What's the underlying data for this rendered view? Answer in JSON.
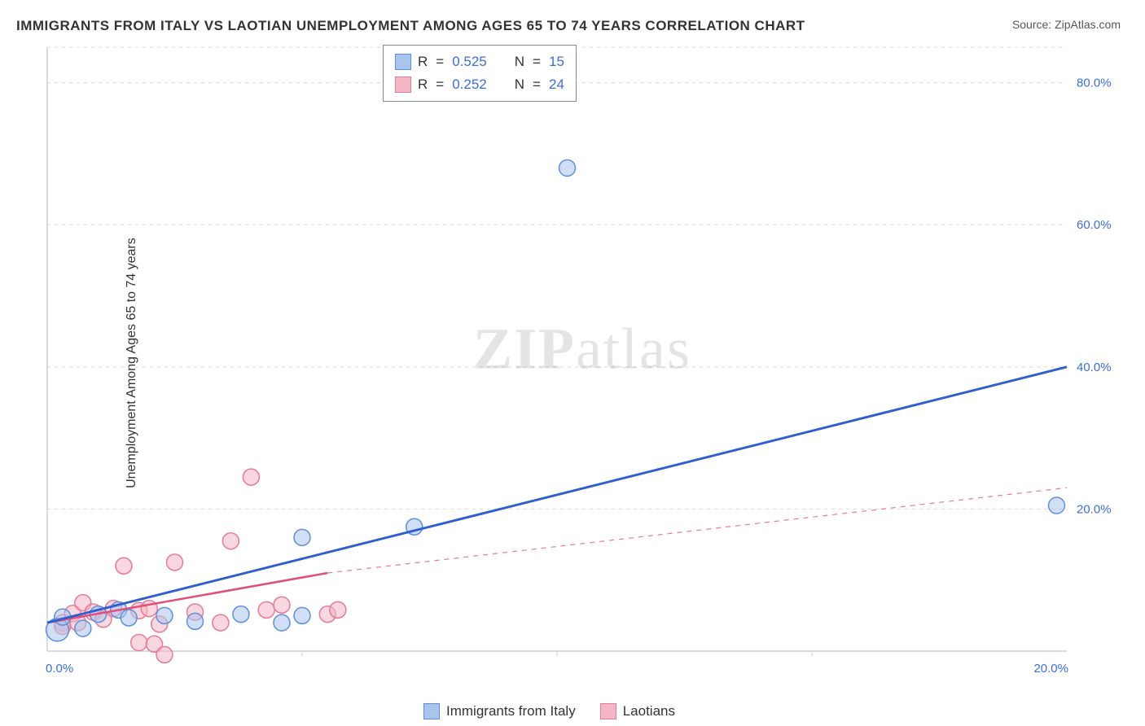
{
  "title": "IMMIGRANTS FROM ITALY VS LAOTIAN UNEMPLOYMENT AMONG AGES 65 TO 74 YEARS CORRELATION CHART",
  "source": "Source: ZipAtlas.com",
  "ylabel": "Unemployment Among Ages 65 to 74 years",
  "watermark_bold": "ZIP",
  "watermark_rest": "atlas",
  "chart": {
    "type": "scatter-correlation",
    "background_color": "#ffffff",
    "grid_color": "#d9d9d9",
    "axis_color": "#cfcfcf",
    "tick_label_color": "#3b6fd6",
    "xlim": [
      0,
      20
    ],
    "ylim": [
      0,
      85
    ],
    "x_ticks": [
      0.0,
      20.0
    ],
    "x_tick_labels": [
      "0.0%",
      "20.0%"
    ],
    "y_ticks": [
      20.0,
      40.0,
      60.0,
      80.0
    ],
    "y_tick_labels": [
      "20.0%",
      "40.0%",
      "60.0%",
      "80.0%"
    ],
    "grid_y": [
      20.0,
      40.0,
      60.0,
      80.0,
      85.0
    ],
    "grid_x_minor": [
      5.0,
      10.0,
      15.0
    ],
    "series": [
      {
        "key": "italy",
        "label": "Immigrants from Italy",
        "r": 0.525,
        "n": 15,
        "fill_color": "#a9c5ec",
        "stroke_color": "#5f8fd9",
        "fill_opacity": 0.55,
        "marker_radius": 10,
        "trend_color": "#2f5fcf",
        "trend_width": 3,
        "trend_dash": "none",
        "trend_line": {
          "x1": 0.0,
          "y1": 4.0,
          "x2": 20.0,
          "y2": 40.0
        },
        "points": [
          {
            "x": 0.2,
            "y": 3.0,
            "r": 14
          },
          {
            "x": 0.3,
            "y": 4.8,
            "r": 10
          },
          {
            "x": 0.7,
            "y": 3.2,
            "r": 10
          },
          {
            "x": 1.0,
            "y": 5.2,
            "r": 10
          },
          {
            "x": 1.4,
            "y": 5.8,
            "r": 10
          },
          {
            "x": 1.6,
            "y": 4.7,
            "r": 10
          },
          {
            "x": 2.3,
            "y": 5.0,
            "r": 10
          },
          {
            "x": 2.9,
            "y": 4.2,
            "r": 10
          },
          {
            "x": 3.8,
            "y": 5.2,
            "r": 10
          },
          {
            "x": 4.6,
            "y": 4.0,
            "r": 10
          },
          {
            "x": 5.0,
            "y": 5.0,
            "r": 10
          },
          {
            "x": 5.0,
            "y": 16.0,
            "r": 10
          },
          {
            "x": 7.2,
            "y": 17.5,
            "r": 10
          },
          {
            "x": 10.2,
            "y": 68.0,
            "r": 10
          },
          {
            "x": 19.8,
            "y": 20.5,
            "r": 10
          }
        ]
      },
      {
        "key": "laotians",
        "label": "Laotians",
        "r": 0.252,
        "n": 24,
        "fill_color": "#f3b7c6",
        "stroke_color": "#e77a97",
        "fill_opacity": 0.55,
        "marker_radius": 10,
        "trend_solid": {
          "color": "#e04f78",
          "width": 2.5,
          "x1": 0.0,
          "y1": 4.0,
          "x2": 5.5,
          "y2": 11.0
        },
        "trend_dash_line": {
          "color": "#e77a97",
          "width": 1.2,
          "dash": "6,6",
          "x1": 5.5,
          "y1": 11.0,
          "x2": 20.0,
          "y2": 23.0
        },
        "points": [
          {
            "x": 0.3,
            "y": 4.0,
            "r": 10
          },
          {
            "x": 0.3,
            "y": 3.5,
            "r": 10
          },
          {
            "x": 0.5,
            "y": 5.3,
            "r": 10
          },
          {
            "x": 0.6,
            "y": 4.0,
            "r": 10
          },
          {
            "x": 0.7,
            "y": 6.8,
            "r": 10
          },
          {
            "x": 0.9,
            "y": 5.5,
            "r": 10
          },
          {
            "x": 1.1,
            "y": 4.5,
            "r": 10
          },
          {
            "x": 1.3,
            "y": 6.0,
            "r": 10
          },
          {
            "x": 1.5,
            "y": 12.0,
            "r": 10
          },
          {
            "x": 1.8,
            "y": 5.7,
            "r": 10
          },
          {
            "x": 1.8,
            "y": 1.2,
            "r": 10
          },
          {
            "x": 2.0,
            "y": 6.0,
            "r": 10
          },
          {
            "x": 2.1,
            "y": 1.0,
            "r": 10
          },
          {
            "x": 2.2,
            "y": 3.8,
            "r": 10
          },
          {
            "x": 2.3,
            "y": -0.5,
            "r": 10
          },
          {
            "x": 2.5,
            "y": 12.5,
            "r": 10
          },
          {
            "x": 2.9,
            "y": 5.5,
            "r": 10
          },
          {
            "x": 3.4,
            "y": 4.0,
            "r": 10
          },
          {
            "x": 3.6,
            "y": 15.5,
            "r": 10
          },
          {
            "x": 4.0,
            "y": 24.5,
            "r": 10
          },
          {
            "x": 4.3,
            "y": 5.8,
            "r": 10
          },
          {
            "x": 4.6,
            "y": 6.5,
            "r": 10
          },
          {
            "x": 5.5,
            "y": 5.2,
            "r": 10
          },
          {
            "x": 5.7,
            "y": 5.8,
            "r": 10
          }
        ]
      }
    ]
  },
  "legend_box": {
    "rows": [
      {
        "swatch_fill": "#a9c5ec",
        "swatch_stroke": "#5f8fd9",
        "r_label": "R",
        "r_val": "0.525",
        "n_label": "N",
        "n_val": "15"
      },
      {
        "swatch_fill": "#f3b7c6",
        "swatch_stroke": "#e77a97",
        "r_label": "R",
        "r_val": "0.252",
        "n_label": "N",
        "n_val": "24"
      }
    ]
  },
  "bottom_legend": [
    {
      "swatch_fill": "#a9c5ec",
      "swatch_stroke": "#5f8fd9",
      "label": "Immigrants from Italy"
    },
    {
      "swatch_fill": "#f3b7c6",
      "swatch_stroke": "#e77a97",
      "label": "Laotians"
    }
  ]
}
